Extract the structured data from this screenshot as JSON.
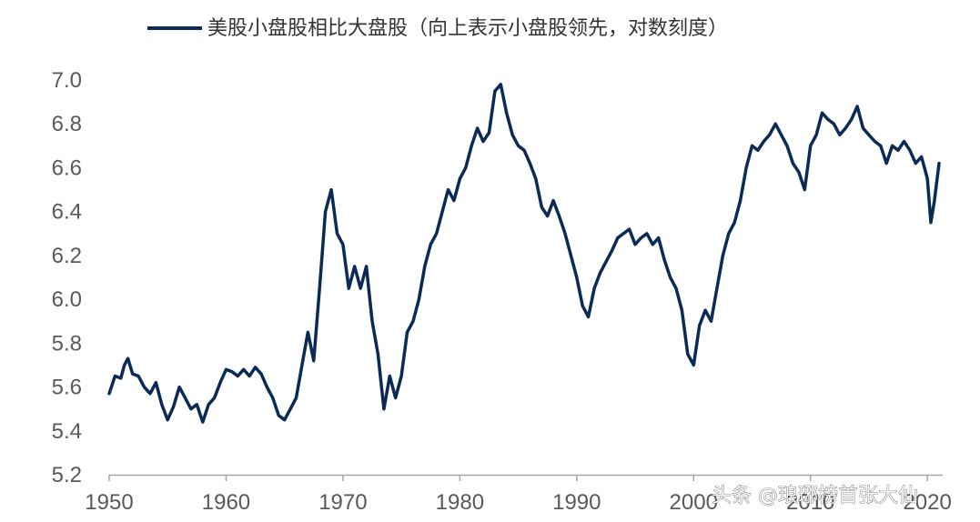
{
  "chart_data": {
    "type": "line",
    "title": "",
    "xlabel": "",
    "ylabel": "",
    "xlim": [
      1950,
      2021
    ],
    "ylim": [
      5.2,
      7.0
    ],
    "log_scale_note_in_legend": true,
    "grid": false,
    "legend_placement": "top-center",
    "y_ticks": [
      "5.2",
      "5.4",
      "5.6",
      "5.8",
      "6.0",
      "6.2",
      "6.4",
      "6.6",
      "6.8",
      "7.0"
    ],
    "y_tick_values": [
      5.2,
      5.4,
      5.6,
      5.8,
      6.0,
      6.2,
      6.4,
      6.6,
      6.8,
      7.0
    ],
    "x_ticks": [
      "1950",
      "1960",
      "1970",
      "1980",
      "1990",
      "2000",
      "2010",
      "2020"
    ],
    "x_tick_values": [
      1950,
      1960,
      1970,
      1980,
      1990,
      2000,
      2010,
      2020
    ],
    "series": [
      {
        "name": "美股小盘股相比大盘股（向上表示小盘股领先，对数刻度）",
        "color": "#0b2a55",
        "x": [
          1950.0,
          1950.5,
          1951.0,
          1951.3,
          1951.6,
          1952.0,
          1952.5,
          1953.0,
          1953.5,
          1954.0,
          1954.5,
          1955.0,
          1955.5,
          1956.0,
          1956.5,
          1957.0,
          1957.5,
          1958.0,
          1958.5,
          1959.0,
          1959.5,
          1960.0,
          1960.5,
          1961.0,
          1961.5,
          1962.0,
          1962.5,
          1963.0,
          1963.5,
          1964.0,
          1964.5,
          1965.0,
          1965.5,
          1966.0,
          1966.5,
          1967.0,
          1967.5,
          1968.0,
          1968.5,
          1969.0,
          1969.5,
          1970.0,
          1970.5,
          1971.0,
          1971.5,
          1972.0,
          1972.5,
          1973.0,
          1973.5,
          1974.0,
          1974.5,
          1975.0,
          1975.5,
          1976.0,
          1976.5,
          1977.0,
          1977.5,
          1978.0,
          1978.5,
          1979.0,
          1979.5,
          1980.0,
          1980.5,
          1981.0,
          1981.5,
          1982.0,
          1982.5,
          1983.0,
          1983.5,
          1984.0,
          1984.5,
          1985.0,
          1985.5,
          1986.0,
          1986.5,
          1987.0,
          1987.5,
          1988.0,
          1988.5,
          1989.0,
          1989.5,
          1990.0,
          1990.5,
          1991.0,
          1991.5,
          1992.0,
          1992.5,
          1993.0,
          1993.5,
          1994.0,
          1994.5,
          1995.0,
          1995.5,
          1996.0,
          1996.5,
          1997.0,
          1997.5,
          1998.0,
          1998.5,
          1999.0,
          1999.5,
          2000.0,
          2000.5,
          2001.0,
          2001.5,
          2002.0,
          2002.5,
          2003.0,
          2003.5,
          2004.0,
          2004.5,
          2005.0,
          2005.5,
          2006.0,
          2006.5,
          2007.0,
          2007.5,
          2008.0,
          2008.5,
          2009.0,
          2009.5,
          2010.0,
          2010.5,
          2011.0,
          2011.5,
          2012.0,
          2012.5,
          2013.0,
          2013.5,
          2014.0,
          2014.5,
          2015.0,
          2015.5,
          2016.0,
          2016.5,
          2017.0,
          2017.5,
          2018.0,
          2018.5,
          2019.0,
          2019.5,
          2020.0,
          2020.3,
          2020.6,
          2021.0
        ],
        "values": [
          5.57,
          5.65,
          5.64,
          5.7,
          5.73,
          5.66,
          5.65,
          5.6,
          5.57,
          5.62,
          5.52,
          5.45,
          5.51,
          5.6,
          5.55,
          5.5,
          5.52,
          5.44,
          5.52,
          5.55,
          5.62,
          5.68,
          5.67,
          5.65,
          5.68,
          5.65,
          5.69,
          5.66,
          5.6,
          5.55,
          5.47,
          5.45,
          5.5,
          5.55,
          5.7,
          5.85,
          5.72,
          6.05,
          6.4,
          6.5,
          6.3,
          6.25,
          6.05,
          6.15,
          6.05,
          6.15,
          5.9,
          5.75,
          5.5,
          5.65,
          5.55,
          5.65,
          5.85,
          5.9,
          6.0,
          6.15,
          6.25,
          6.3,
          6.4,
          6.5,
          6.45,
          6.55,
          6.6,
          6.7,
          6.78,
          6.72,
          6.76,
          6.95,
          6.98,
          6.85,
          6.75,
          6.7,
          6.68,
          6.62,
          6.55,
          6.42,
          6.38,
          6.45,
          6.38,
          6.3,
          6.2,
          6.1,
          5.97,
          5.92,
          6.05,
          6.12,
          6.17,
          6.22,
          6.28,
          6.3,
          6.32,
          6.25,
          6.28,
          6.3,
          6.25,
          6.28,
          6.18,
          6.1,
          6.05,
          5.95,
          5.75,
          5.7,
          5.88,
          5.95,
          5.9,
          6.05,
          6.2,
          6.3,
          6.35,
          6.45,
          6.6,
          6.7,
          6.68,
          6.72,
          6.75,
          6.8,
          6.75,
          6.7,
          6.62,
          6.58,
          6.5,
          6.7,
          6.75,
          6.85,
          6.82,
          6.8,
          6.75,
          6.78,
          6.82,
          6.88,
          6.78,
          6.75,
          6.72,
          6.7,
          6.62,
          6.7,
          6.68,
          6.72,
          6.68,
          6.62,
          6.65,
          6.55,
          6.35,
          6.45,
          6.62
        ]
      }
    ],
    "watermark": "头条 @琅琊榜首张大仙"
  }
}
